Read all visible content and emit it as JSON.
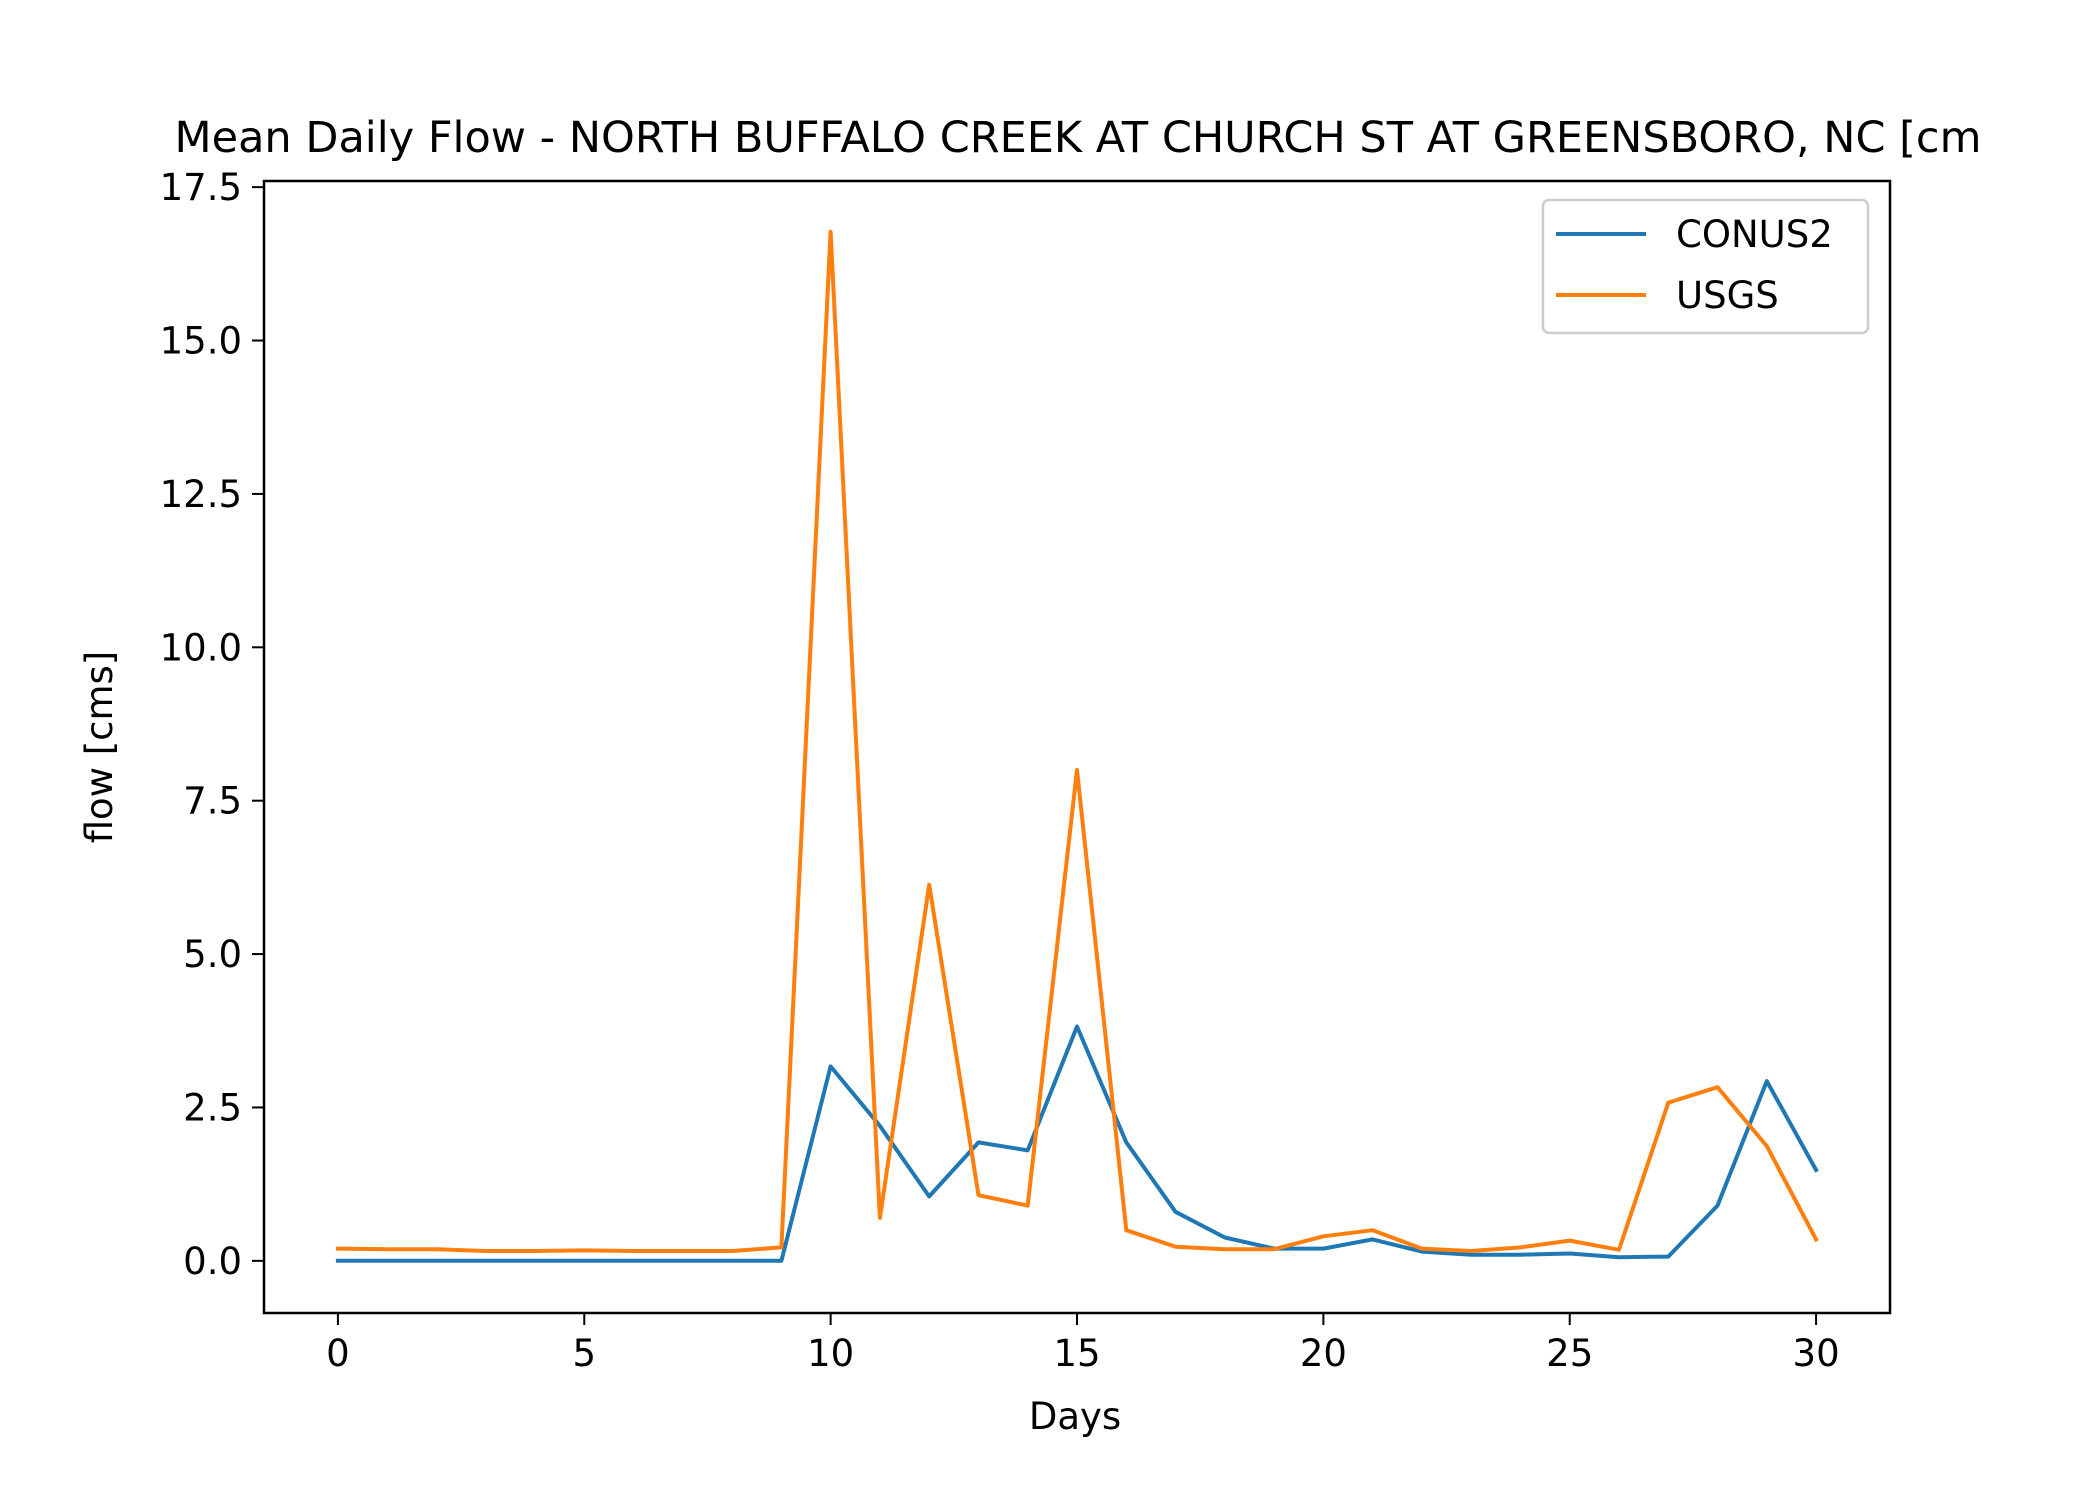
{
  "chart_data": {
    "type": "line",
    "title": "Mean Daily Flow - NORTH BUFFALO CREEK AT CHURCH ST AT GREENSBORO, NC [cm",
    "xlabel": "Days",
    "ylabel": "flow [cms]",
    "xlim": [
      -1.5,
      31.5
    ],
    "ylim": [
      -0.85,
      17.6
    ],
    "xticks": [
      0,
      5,
      10,
      15,
      20,
      25,
      30
    ],
    "xtick_labels": [
      "0",
      "5",
      "10",
      "15",
      "20",
      "25",
      "30"
    ],
    "yticks": [
      0,
      2.5,
      5,
      7.5,
      10,
      12.5,
      15,
      17.5
    ],
    "ytick_labels": [
      "0.0",
      "2.5",
      "5.0",
      "7.5",
      "10.0",
      "12.5",
      "15.0",
      "17.5"
    ],
    "grid": false,
    "legend_position": "top-right",
    "x": [
      0,
      1,
      2,
      3,
      4,
      5,
      6,
      7,
      8,
      9,
      10,
      11,
      12,
      13,
      14,
      15,
      16,
      17,
      18,
      19,
      20,
      21,
      22,
      23,
      24,
      25,
      26,
      27,
      28,
      29,
      30
    ],
    "series": [
      {
        "name": "CONUS2",
        "color": "#1f77b4",
        "values": [
          0.0,
          0.0,
          0.0,
          0.0,
          0.0,
          0.0,
          0.0,
          0.0,
          0.0,
          0.0,
          3.17,
          2.2,
          1.05,
          1.93,
          1.8,
          3.82,
          1.93,
          0.8,
          0.38,
          0.2,
          0.2,
          0.35,
          0.15,
          0.1,
          0.1,
          0.12,
          0.06,
          0.07,
          0.9,
          2.93,
          1.48
        ]
      },
      {
        "name": "USGS",
        "color": "#ff7f0e",
        "values": [
          0.2,
          0.19,
          0.19,
          0.16,
          0.16,
          0.17,
          0.16,
          0.16,
          0.16,
          0.22,
          16.77,
          0.7,
          6.13,
          1.07,
          0.9,
          8.0,
          0.5,
          0.23,
          0.19,
          0.19,
          0.4,
          0.5,
          0.2,
          0.16,
          0.22,
          0.33,
          0.18,
          2.58,
          2.83,
          1.87,
          0.35
        ]
      }
    ]
  }
}
